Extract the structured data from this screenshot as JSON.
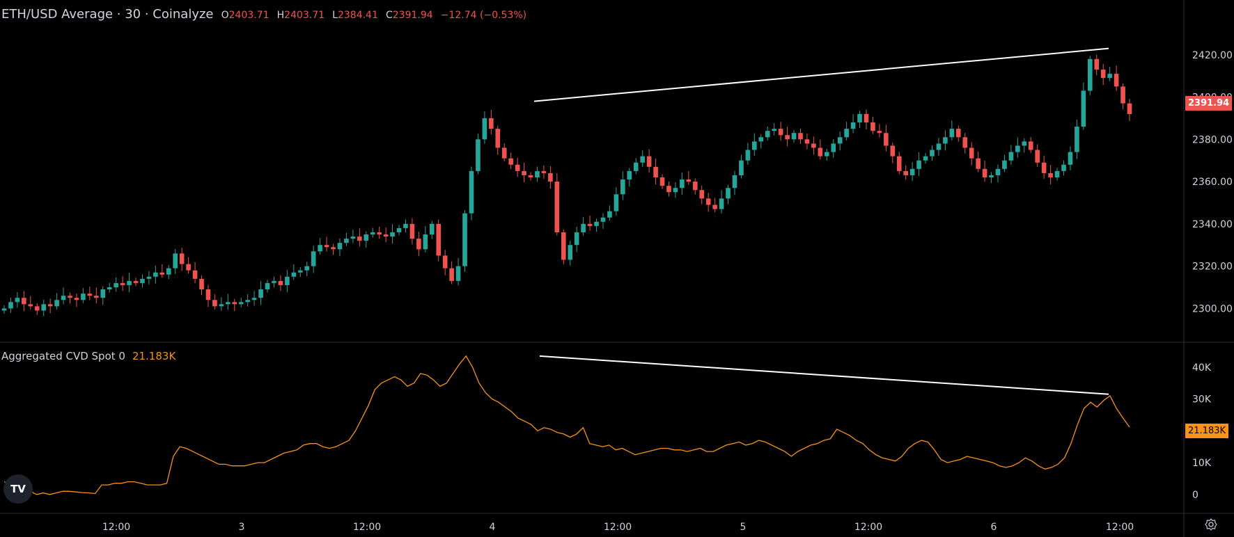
{
  "header": {
    "title": "ETH/USD Average · 30 · Coinalyze",
    "open_label": "O",
    "open": "2403.71",
    "high_label": "H",
    "high": "2403.71",
    "low_label": "L",
    "low": "2384.41",
    "close_label": "C",
    "close": "2391.94",
    "change": "−12.74 (−0.53%)"
  },
  "indicator": {
    "name": "Aggregated CVD Spot 0",
    "value": "21.183K"
  },
  "price_badge": "2391.94",
  "cvd_badge": "21.183K",
  "logo_text": "TV",
  "icons": {
    "logo": "tradingview-logo-icon",
    "settings": "gear-icon"
  },
  "colors": {
    "background": "#000000",
    "up": "#26a69a",
    "down": "#ef5350",
    "cvd_line": "#f7931a",
    "trendline": "#ffffff",
    "text": "#d1d4dc"
  },
  "chart_data": [
    {
      "type": "candlestick",
      "title": "ETH/USD Average · 30 · Coinalyze",
      "interval": "30",
      "y_ticks": [
        "2420.00",
        "2400.00",
        "2380.00",
        "2360.00",
        "2340.00",
        "2320.00",
        "2300.00"
      ],
      "ylim": [
        2284,
        2440
      ],
      "x_ticks": [
        "12:00",
        "3",
        "12:00",
        "4",
        "12:00",
        "5",
        "12:00",
        "6",
        "12:00"
      ],
      "last_price": 2391.94,
      "closes": [
        2300,
        2303,
        2305,
        2302,
        2301,
        2299,
        2302,
        2301,
        2304,
        2306,
        2305,
        2304,
        2307,
        2306,
        2305,
        2309,
        2310,
        2312,
        2311,
        2313,
        2312,
        2314,
        2315,
        2317,
        2316,
        2319,
        2326,
        2321,
        2318,
        2314,
        2309,
        2304,
        2301,
        2302,
        2303,
        2302,
        2303,
        2304,
        2305,
        2309,
        2312,
        2313,
        2311,
        2315,
        2317,
        2318,
        2320,
        2327,
        2330,
        2329,
        2328,
        2331,
        2333,
        2334,
        2332,
        2335,
        2336,
        2335,
        2334,
        2336,
        2338,
        2340,
        2333,
        2328,
        2335,
        2340,
        2325,
        2319,
        2313,
        2320,
        2345,
        2365,
        2380,
        2390,
        2385,
        2376,
        2371,
        2368,
        2365,
        2363,
        2362,
        2365,
        2364,
        2360,
        2336,
        2323,
        2330,
        2336,
        2340,
        2339,
        2341,
        2343,
        2346,
        2354,
        2361,
        2365,
        2369,
        2372,
        2367,
        2362,
        2358,
        2355,
        2357,
        2361,
        2360,
        2356,
        2352,
        2349,
        2347,
        2352,
        2357,
        2363,
        2370,
        2375,
        2379,
        2381,
        2384,
        2385,
        2382,
        2380,
        2383,
        2380,
        2378,
        2376,
        2372,
        2374,
        2378,
        2381,
        2385,
        2388,
        2392,
        2388,
        2384,
        2383,
        2377,
        2372,
        2365,
        2363,
        2366,
        2370,
        2372,
        2375,
        2378,
        2381,
        2385,
        2381,
        2376,
        2371,
        2366,
        2362,
        2363,
        2366,
        2370,
        2374,
        2377,
        2379,
        2375,
        2369,
        2364,
        2362,
        2365,
        2368,
        2374,
        2386,
        2403,
        2418,
        2413,
        2409,
        2411,
        2405,
        2397,
        2391.94
      ],
      "trendline": {
        "from": [
          4.34,
          2398
        ],
        "to": [
          5.92,
          2423
        ]
      }
    },
    {
      "type": "line",
      "title": "Aggregated CVD Spot 0",
      "y_ticks": [
        "40K",
        "30K",
        "20K",
        "10K",
        "0"
      ],
      "ylim": [
        -2000,
        45000
      ],
      "x_ticks": [
        "12:00",
        "3",
        "12:00",
        "4",
        "12:00",
        "5",
        "12:00",
        "6",
        "12:00"
      ],
      "last_value": "21.183K",
      "values": [
        4000,
        3000,
        2000,
        1000,
        1000,
        0,
        500,
        0,
        500,
        1000,
        1000,
        800,
        600,
        500,
        300,
        3000,
        3000,
        3500,
        3500,
        4000,
        4000,
        3500,
        3000,
        3000,
        3000,
        3500,
        12000,
        15000,
        14500,
        13500,
        12500,
        11500,
        10500,
        9500,
        9500,
        9000,
        9000,
        9000,
        9500,
        10000,
        10000,
        11000,
        12000,
        13000,
        13500,
        14000,
        15500,
        16000,
        16000,
        15000,
        14500,
        15000,
        16000,
        17000,
        20000,
        24000,
        28000,
        33000,
        35000,
        36000,
        37000,
        36000,
        34000,
        35000,
        38000,
        37500,
        36000,
        34000,
        35000,
        38000,
        41000,
        43500,
        40000,
        35000,
        32000,
        30000,
        29000,
        27500,
        26000,
        24000,
        23000,
        22000,
        20000,
        21000,
        20500,
        19500,
        19000,
        18000,
        19000,
        21000,
        16000,
        15500,
        15000,
        15500,
        14000,
        14500,
        13500,
        12500,
        13000,
        13500,
        14000,
        14500,
        14500,
        14000,
        14000,
        13500,
        14000,
        14500,
        13500,
        13500,
        14500,
        15500,
        16000,
        16500,
        15500,
        16000,
        17000,
        16500,
        15500,
        14500,
        13500,
        12000,
        13500,
        14500,
        15500,
        16000,
        17000,
        17500,
        20500,
        19500,
        18500,
        17000,
        16000,
        14000,
        12500,
        11500,
        11000,
        10500,
        12000,
        14500,
        16000,
        17000,
        16500,
        14000,
        11000,
        10000,
        10500,
        11000,
        12000,
        11500,
        11000,
        10500,
        10000,
        9000,
        8500,
        9000,
        10000,
        11500,
        10500,
        9000,
        8000,
        8500,
        9500,
        11500,
        16000,
        22000,
        27000,
        29000,
        27500,
        29500,
        31000,
        27000,
        24000,
        21183
      ],
      "trendline": {
        "from": [
          4.34,
          43500
        ],
        "to": [
          5.92,
          31500
        ]
      }
    }
  ]
}
